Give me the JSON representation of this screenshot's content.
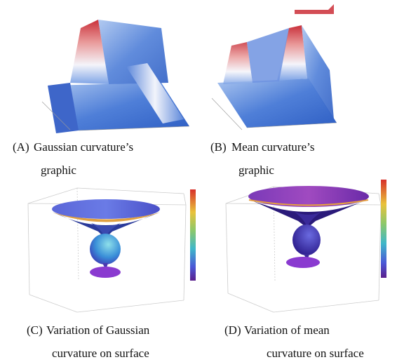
{
  "panels": [
    {
      "label": "(A)",
      "caption": [
        "Gaussian curvature’s",
        "graphic"
      ]
    },
    {
      "label": "(B)",
      "caption": [
        "Mean curvature’s",
        "graphic"
      ]
    },
    {
      "label": "(C)",
      "caption": [
        "Variation of Gaussian",
        "curvature on surface"
      ]
    },
    {
      "label": "(D)",
      "caption": [
        "Variation of mean",
        "curvature on surface"
      ]
    }
  ]
}
